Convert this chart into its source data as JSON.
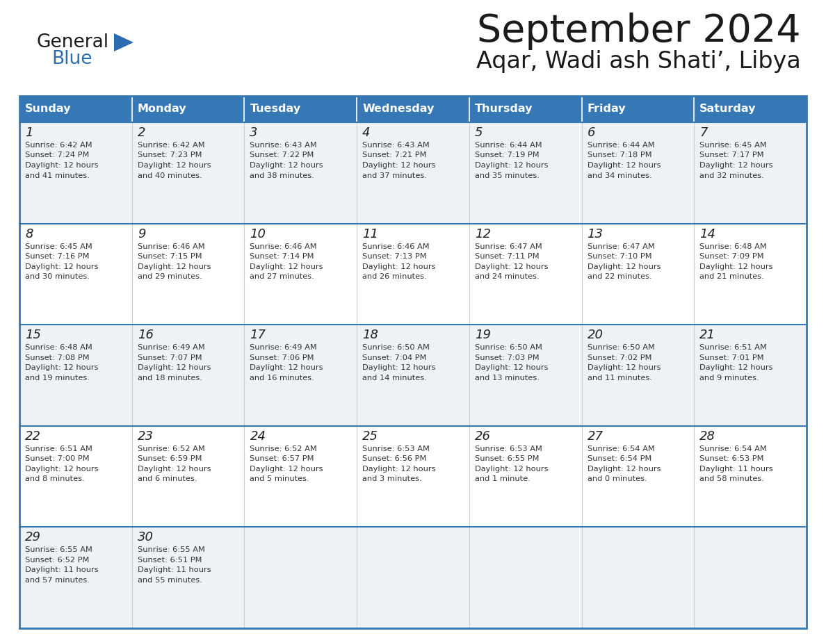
{
  "title": "September 2024",
  "subtitle": "Aqar, Wadi ash Shati’, Libya",
  "days_of_week": [
    "Sunday",
    "Monday",
    "Tuesday",
    "Wednesday",
    "Thursday",
    "Friday",
    "Saturday"
  ],
  "header_bg": "#3578b5",
  "header_text": "#ffffff",
  "row_bg_odd": "#eef2f7",
  "row_bg_even": "#ffffff",
  "cell_text_color": "#333333",
  "border_color": "#3578b5",
  "title_color": "#1a1a1a",
  "subtitle_color": "#1a1a1a",
  "days": [
    {
      "date": 1,
      "day_of_week": 0,
      "sunrise": "6:42 AM",
      "sunset": "7:24 PM",
      "daylight_line1": "Daylight: 12 hours",
      "daylight_line2": "and 41 minutes."
    },
    {
      "date": 2,
      "day_of_week": 1,
      "sunrise": "6:42 AM",
      "sunset": "7:23 PM",
      "daylight_line1": "Daylight: 12 hours",
      "daylight_line2": "and 40 minutes."
    },
    {
      "date": 3,
      "day_of_week": 2,
      "sunrise": "6:43 AM",
      "sunset": "7:22 PM",
      "daylight_line1": "Daylight: 12 hours",
      "daylight_line2": "and 38 minutes."
    },
    {
      "date": 4,
      "day_of_week": 3,
      "sunrise": "6:43 AM",
      "sunset": "7:21 PM",
      "daylight_line1": "Daylight: 12 hours",
      "daylight_line2": "and 37 minutes."
    },
    {
      "date": 5,
      "day_of_week": 4,
      "sunrise": "6:44 AM",
      "sunset": "7:19 PM",
      "daylight_line1": "Daylight: 12 hours",
      "daylight_line2": "and 35 minutes."
    },
    {
      "date": 6,
      "day_of_week": 5,
      "sunrise": "6:44 AM",
      "sunset": "7:18 PM",
      "daylight_line1": "Daylight: 12 hours",
      "daylight_line2": "and 34 minutes."
    },
    {
      "date": 7,
      "day_of_week": 6,
      "sunrise": "6:45 AM",
      "sunset": "7:17 PM",
      "daylight_line1": "Daylight: 12 hours",
      "daylight_line2": "and 32 minutes."
    },
    {
      "date": 8,
      "day_of_week": 0,
      "sunrise": "6:45 AM",
      "sunset": "7:16 PM",
      "daylight_line1": "Daylight: 12 hours",
      "daylight_line2": "and 30 minutes."
    },
    {
      "date": 9,
      "day_of_week": 1,
      "sunrise": "6:46 AM",
      "sunset": "7:15 PM",
      "daylight_line1": "Daylight: 12 hours",
      "daylight_line2": "and 29 minutes."
    },
    {
      "date": 10,
      "day_of_week": 2,
      "sunrise": "6:46 AM",
      "sunset": "7:14 PM",
      "daylight_line1": "Daylight: 12 hours",
      "daylight_line2": "and 27 minutes."
    },
    {
      "date": 11,
      "day_of_week": 3,
      "sunrise": "6:46 AM",
      "sunset": "7:13 PM",
      "daylight_line1": "Daylight: 12 hours",
      "daylight_line2": "and 26 minutes."
    },
    {
      "date": 12,
      "day_of_week": 4,
      "sunrise": "6:47 AM",
      "sunset": "7:11 PM",
      "daylight_line1": "Daylight: 12 hours",
      "daylight_line2": "and 24 minutes."
    },
    {
      "date": 13,
      "day_of_week": 5,
      "sunrise": "6:47 AM",
      "sunset": "7:10 PM",
      "daylight_line1": "Daylight: 12 hours",
      "daylight_line2": "and 22 minutes."
    },
    {
      "date": 14,
      "day_of_week": 6,
      "sunrise": "6:48 AM",
      "sunset": "7:09 PM",
      "daylight_line1": "Daylight: 12 hours",
      "daylight_line2": "and 21 minutes."
    },
    {
      "date": 15,
      "day_of_week": 0,
      "sunrise": "6:48 AM",
      "sunset": "7:08 PM",
      "daylight_line1": "Daylight: 12 hours",
      "daylight_line2": "and 19 minutes."
    },
    {
      "date": 16,
      "day_of_week": 1,
      "sunrise": "6:49 AM",
      "sunset": "7:07 PM",
      "daylight_line1": "Daylight: 12 hours",
      "daylight_line2": "and 18 minutes."
    },
    {
      "date": 17,
      "day_of_week": 2,
      "sunrise": "6:49 AM",
      "sunset": "7:06 PM",
      "daylight_line1": "Daylight: 12 hours",
      "daylight_line2": "and 16 minutes."
    },
    {
      "date": 18,
      "day_of_week": 3,
      "sunrise": "6:50 AM",
      "sunset": "7:04 PM",
      "daylight_line1": "Daylight: 12 hours",
      "daylight_line2": "and 14 minutes."
    },
    {
      "date": 19,
      "day_of_week": 4,
      "sunrise": "6:50 AM",
      "sunset": "7:03 PM",
      "daylight_line1": "Daylight: 12 hours",
      "daylight_line2": "and 13 minutes."
    },
    {
      "date": 20,
      "day_of_week": 5,
      "sunrise": "6:50 AM",
      "sunset": "7:02 PM",
      "daylight_line1": "Daylight: 12 hours",
      "daylight_line2": "and 11 minutes."
    },
    {
      "date": 21,
      "day_of_week": 6,
      "sunrise": "6:51 AM",
      "sunset": "7:01 PM",
      "daylight_line1": "Daylight: 12 hours",
      "daylight_line2": "and 9 minutes."
    },
    {
      "date": 22,
      "day_of_week": 0,
      "sunrise": "6:51 AM",
      "sunset": "7:00 PM",
      "daylight_line1": "Daylight: 12 hours",
      "daylight_line2": "and 8 minutes."
    },
    {
      "date": 23,
      "day_of_week": 1,
      "sunrise": "6:52 AM",
      "sunset": "6:59 PM",
      "daylight_line1": "Daylight: 12 hours",
      "daylight_line2": "and 6 minutes."
    },
    {
      "date": 24,
      "day_of_week": 2,
      "sunrise": "6:52 AM",
      "sunset": "6:57 PM",
      "daylight_line1": "Daylight: 12 hours",
      "daylight_line2": "and 5 minutes."
    },
    {
      "date": 25,
      "day_of_week": 3,
      "sunrise": "6:53 AM",
      "sunset": "6:56 PM",
      "daylight_line1": "Daylight: 12 hours",
      "daylight_line2": "and 3 minutes."
    },
    {
      "date": 26,
      "day_of_week": 4,
      "sunrise": "6:53 AM",
      "sunset": "6:55 PM",
      "daylight_line1": "Daylight: 12 hours",
      "daylight_line2": "and 1 minute."
    },
    {
      "date": 27,
      "day_of_week": 5,
      "sunrise": "6:54 AM",
      "sunset": "6:54 PM",
      "daylight_line1": "Daylight: 12 hours",
      "daylight_line2": "and 0 minutes."
    },
    {
      "date": 28,
      "day_of_week": 6,
      "sunrise": "6:54 AM",
      "sunset": "6:53 PM",
      "daylight_line1": "Daylight: 11 hours",
      "daylight_line2": "and 58 minutes."
    },
    {
      "date": 29,
      "day_of_week": 0,
      "sunrise": "6:55 AM",
      "sunset": "6:52 PM",
      "daylight_line1": "Daylight: 11 hours",
      "daylight_line2": "and 57 minutes."
    },
    {
      "date": 30,
      "day_of_week": 1,
      "sunrise": "6:55 AM",
      "sunset": "6:51 PM",
      "daylight_line1": "Daylight: 11 hours",
      "daylight_line2": "and 55 minutes."
    }
  ],
  "logo_general_color": "#1a1a1a",
  "logo_blue_color": "#2b6cb0"
}
